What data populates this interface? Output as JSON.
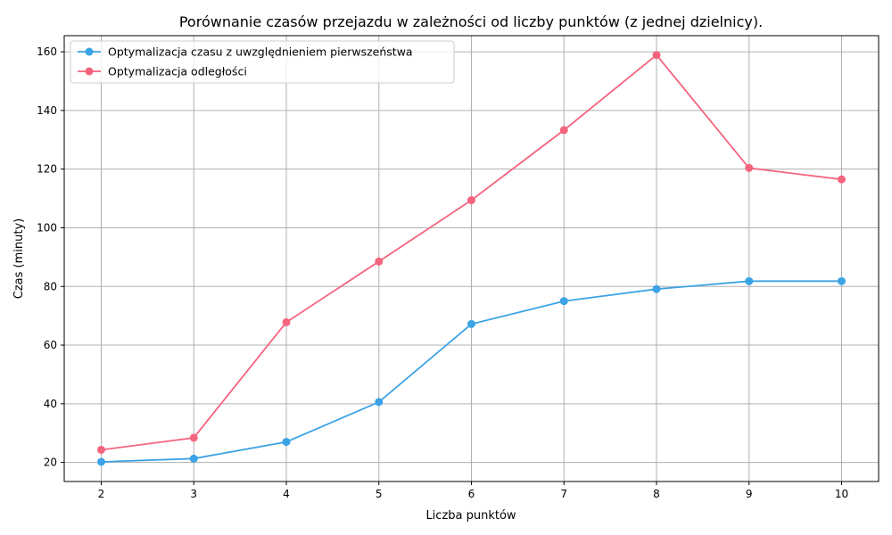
{
  "chart_data": {
    "type": "line",
    "title": "Porównanie czasów przejazdu w zależności od liczby punktów (z jednej dzielnicy).",
    "xlabel": "Liczba punktów",
    "ylabel": "Czas (minuty)",
    "x": [
      2,
      3,
      4,
      5,
      6,
      7,
      8,
      9,
      10
    ],
    "xlim": [
      1.6,
      10.4
    ],
    "ylim": [
      13.5,
      165.5
    ],
    "xticks": [
      2,
      3,
      4,
      5,
      6,
      7,
      8,
      9,
      10
    ],
    "yticks": [
      20,
      40,
      60,
      80,
      100,
      120,
      140,
      160
    ],
    "grid": true,
    "legend_position": "top-left",
    "series": [
      {
        "name": "Optymalizacja czasu z uwzględnieniem pierwszeństwa",
        "color": "#3ba3e6",
        "values": [
          20.2,
          21.3,
          27.0,
          40.6,
          67.2,
          75.0,
          79.1,
          81.8,
          81.8
        ]
      },
      {
        "name": "Optymalizacja odległości",
        "color": "#f5647f",
        "values": [
          24.3,
          28.4,
          67.8,
          88.5,
          109.4,
          133.3,
          158.9,
          120.4,
          116.5
        ]
      }
    ]
  }
}
